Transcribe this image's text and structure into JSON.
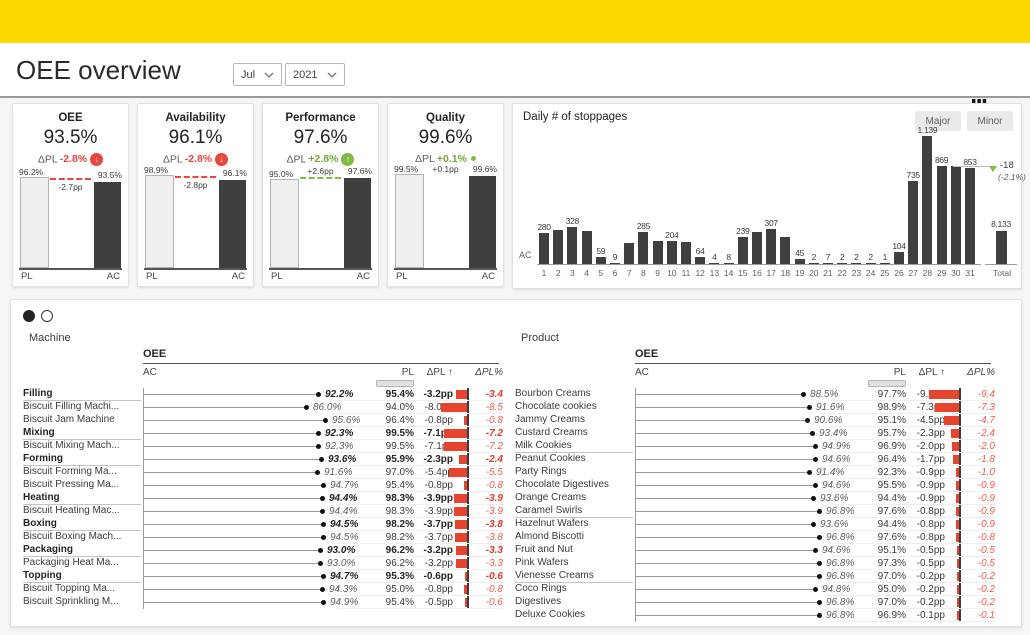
{
  "header": {
    "title": "OEE overview",
    "month_filter": "Jul",
    "year_filter": "2021",
    "page_dots_total": 4,
    "page_dots_active_index": 0
  },
  "colors": {
    "accent_yellow": "#FFD800",
    "negative_red": "#E8453C",
    "positive_green": "#7FBA42",
    "bar_dark": "#3F3F3D"
  },
  "kpi_cards": [
    {
      "title": "OEE",
      "value": "93.5%",
      "delta_label": "ΔPL",
      "delta": "-2.8%",
      "direction": "down",
      "pl_label": "96.2%",
      "ac_label": "93.5%",
      "delta_pp": "-2.7pp",
      "pl_value": 96.2,
      "ac_value": 93.5,
      "show_dash": true,
      "axis_left": "PL",
      "axis_right": "AC"
    },
    {
      "title": "Availability",
      "value": "96.1%",
      "delta_label": "ΔPL",
      "delta": "-2.8%",
      "direction": "down",
      "pl_label": "98.9%",
      "ac_label": "96.1%",
      "delta_pp": "-2.8pp",
      "pl_value": 98.9,
      "ac_value": 96.1,
      "show_dash": true,
      "axis_left": "PL",
      "axis_right": "AC"
    },
    {
      "title": "Performance",
      "value": "97.6%",
      "delta_label": "ΔPL",
      "delta": "+2.8%",
      "direction": "up",
      "pl_label": "95.0%",
      "ac_label": "97.6%",
      "delta_pp": "+2.6pp",
      "pl_value": 95.0,
      "ac_value": 97.6,
      "show_dash": true,
      "axis_left": "PL",
      "axis_right": "AC"
    },
    {
      "title": "Quality",
      "value": "99.6%",
      "delta_label": "ΔPL",
      "delta": "+0.1%",
      "direction": "up-small",
      "pl_label": "99.5%",
      "ac_label": "99.6%",
      "delta_pp": "+0.1pp",
      "pl_value": 99.5,
      "ac_value": 99.6,
      "show_dash": false,
      "axis_left": "PL",
      "axis_right": "AC"
    }
  ],
  "stoppages": {
    "title": "Daily # of stoppages",
    "buttons": [
      "Major",
      "Minor"
    ],
    "series_label": "AC",
    "annotation": {
      "value": "-18",
      "pct": "(-2.1%)"
    },
    "total": {
      "tick": "Total",
      "label": "8,133"
    },
    "chart_data": {
      "type": "bar",
      "x": [
        1,
        2,
        3,
        4,
        5,
        6,
        7,
        8,
        9,
        10,
        11,
        12,
        13,
        14,
        15,
        16,
        17,
        18,
        19,
        20,
        21,
        22,
        23,
        24,
        25,
        26,
        27,
        28,
        29,
        30,
        31
      ],
      "values": [
        280,
        300,
        328,
        295,
        59,
        9,
        190,
        285,
        205,
        204,
        195,
        64,
        4,
        8,
        239,
        285,
        307,
        244,
        45,
        2,
        7,
        2,
        2,
        2,
        1,
        104,
        735,
        1139,
        869,
        871,
        853
      ],
      "bar_labels": [
        "280",
        "",
        "328",
        "",
        "59",
        "9",
        "",
        "285",
        "",
        "204",
        "",
        "64",
        "4",
        "8",
        "239",
        "",
        "307",
        "",
        "45",
        "2",
        "7",
        "2",
        "2",
        "2",
        "1",
        "104",
        "735",
        "1,139",
        "869",
        "",
        "853"
      ],
      "total_value": 8133,
      "title": "Daily # of stoppages",
      "ylim": [
        0,
        1200
      ]
    }
  },
  "tables": {
    "headers": {
      "oee": "OEE",
      "ac": "AC",
      "pl": "PL",
      "dpl": "ΔPL ↑",
      "dplpct": "ΔPL%"
    },
    "machine": {
      "caption": "Machine",
      "rows": [
        {
          "label": "Filling",
          "ac": "92.2%",
          "pl": "95.4%",
          "dpl": "-3.2pp",
          "dplpct": "-3.4",
          "group": true
        },
        {
          "label": "Biscuit Filling Machi...",
          "ac": "86.0%",
          "pl": "94.0%",
          "dpl": "-8.0pp",
          "dplpct": "-8.5"
        },
        {
          "label": "Biscuit Jam Machine",
          "ac": "95.6%",
          "pl": "96.4%",
          "dpl": "-0.8pp",
          "dplpct": "-0.8"
        },
        {
          "label": "Mixing",
          "ac": "92.3%",
          "pl": "99.5%",
          "dpl": "-7.1pp",
          "dplpct": "-7.2",
          "group": true
        },
        {
          "label": "Biscuit Mixing Mach...",
          "ac": "92.3%",
          "pl": "99.5%",
          "dpl": "-7.1pp",
          "dplpct": "-7.2"
        },
        {
          "label": "Forming",
          "ac": "93.6%",
          "pl": "95.9%",
          "dpl": "-2.3pp",
          "dplpct": "-2.4",
          "group": true
        },
        {
          "label": "Biscuit Forming Ma...",
          "ac": "91.6%",
          "pl": "97.0%",
          "dpl": "-5.4pp",
          "dplpct": "-5.5"
        },
        {
          "label": "Biscuit Pressing Ma...",
          "ac": "94.7%",
          "pl": "95.4%",
          "dpl": "-0.8pp",
          "dplpct": "-0.8"
        },
        {
          "label": "Heating",
          "ac": "94.4%",
          "pl": "98.3%",
          "dpl": "-3.9pp",
          "dplpct": "-3.9",
          "group": true
        },
        {
          "label": "Biscuit Heating Mac...",
          "ac": "94.4%",
          "pl": "98.3%",
          "dpl": "-3.9pp",
          "dplpct": "-3.9"
        },
        {
          "label": "Boxing",
          "ac": "94.5%",
          "pl": "98.2%",
          "dpl": "-3.7pp",
          "dplpct": "-3.8",
          "group": true
        },
        {
          "label": "Biscuit Boxing Mach...",
          "ac": "94.5%",
          "pl": "98.2%",
          "dpl": "-3.7pp",
          "dplpct": "-3.8"
        },
        {
          "label": "Packaging",
          "ac": "93.0%",
          "pl": "96.2%",
          "dpl": "-3.2pp",
          "dplpct": "-3.3",
          "group": true
        },
        {
          "label": "Packaging Heat Ma...",
          "ac": "93.0%",
          "pl": "96.2%",
          "dpl": "-3.2pp",
          "dplpct": "-3.3"
        },
        {
          "label": "Topping",
          "ac": "94.7%",
          "pl": "95.3%",
          "dpl": "-0.6pp",
          "dplpct": "-0.6",
          "group": true
        },
        {
          "label": "Biscuit Topping Ma...",
          "ac": "94.3%",
          "pl": "95.0%",
          "dpl": "-0.8pp",
          "dplpct": "-0.8"
        },
        {
          "label": "Biscuit Sprinkling M...",
          "ac": "94.9%",
          "pl": "95.4%",
          "dpl": "-0.5pp",
          "dplpct": "-0.6"
        }
      ]
    },
    "product": {
      "caption": "Product",
      "rows": [
        {
          "label": "Bourbon Creams",
          "ac": "88.5%",
          "pl": "97.7%",
          "dpl": "-9.2pp",
          "dplpct": "-9.4"
        },
        {
          "label": "Chocolate cookies",
          "ac": "91.6%",
          "pl": "98.9%",
          "dpl": "-7.3pp",
          "dplpct": "-7.3"
        },
        {
          "label": "Jammy Creams",
          "ac": "90.6%",
          "pl": "95.1%",
          "dpl": "-4.5pp",
          "dplpct": "-4.7"
        },
        {
          "label": "Custard Creams",
          "ac": "93.4%",
          "pl": "95.7%",
          "dpl": "-2.3pp",
          "dplpct": "-2.4"
        },
        {
          "label": "Milk Cookies",
          "ac": "94.9%",
          "pl": "96.9%",
          "dpl": "-2.0pp",
          "dplpct": "-2.0",
          "divider": true
        },
        {
          "label": "Peanut Cookies",
          "ac": "94.6%",
          "pl": "96.4%",
          "dpl": "-1.7pp",
          "dplpct": "-1.8"
        },
        {
          "label": "Party Rings",
          "ac": "91.4%",
          "pl": "92.3%",
          "dpl": "-0.9pp",
          "dplpct": "-1.0"
        },
        {
          "label": "Chocolate Digestives",
          "ac": "94.6%",
          "pl": "95.5%",
          "dpl": "-0.9pp",
          "dplpct": "-0.9"
        },
        {
          "label": "Orange Creams",
          "ac": "93.6%",
          "pl": "94.4%",
          "dpl": "-0.9pp",
          "dplpct": "-0.9"
        },
        {
          "label": "Caramel Swirls",
          "ac": "96.8%",
          "pl": "97.6%",
          "dpl": "-0.8pp",
          "dplpct": "-0.9",
          "divider": true
        },
        {
          "label": "Hazelnut Wafers",
          "ac": "93.6%",
          "pl": "94.4%",
          "dpl": "-0.8pp",
          "dplpct": "-0.9"
        },
        {
          "label": "Almond Biscotti",
          "ac": "96.8%",
          "pl": "97.6%",
          "dpl": "-0.8pp",
          "dplpct": "-0.8"
        },
        {
          "label": "Fruit and Nut",
          "ac": "94.6%",
          "pl": "95.1%",
          "dpl": "-0.5pp",
          "dplpct": "-0.5"
        },
        {
          "label": "Pink Wafers",
          "ac": "96.8%",
          "pl": "97.3%",
          "dpl": "-0.5pp",
          "dplpct": "-0.5"
        },
        {
          "label": "Vienesse Creams",
          "ac": "96.8%",
          "pl": "97.0%",
          "dpl": "-0.2pp",
          "dplpct": "-0.2",
          "divider": true
        },
        {
          "label": "Coco Rings",
          "ac": "94.8%",
          "pl": "95.0%",
          "dpl": "-0.2pp",
          "dplpct": "-0.2"
        },
        {
          "label": "Digestives",
          "ac": "96.8%",
          "pl": "97.0%",
          "dpl": "-0.2pp",
          "dplpct": "-0.2"
        },
        {
          "label": "Deluxe Cookies",
          "ac": "96.8%",
          "pl": "96.9%",
          "dpl": "-0.1pp",
          "dplpct": "-0.1"
        }
      ]
    }
  }
}
